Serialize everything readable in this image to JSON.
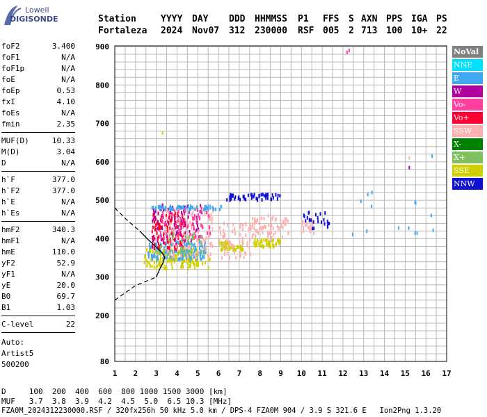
{
  "logo": {
    "line1": "Lowell",
    "line2": "DIGISONDE"
  },
  "header": {
    "row1": [
      "Station",
      "YYYY",
      "DAY",
      "DDD",
      "HHMMSS",
      "P1",
      "FFS",
      "S",
      "AXN",
      "PPS",
      "IGA",
      "PS"
    ],
    "row2": [
      "Fortaleza",
      "2024",
      "Nov07",
      "312",
      "230000",
      "RSF",
      "005",
      "2",
      "713",
      "100",
      "10+",
      "22"
    ]
  },
  "params_group1": [
    {
      "name": "foF2",
      "value": "3.400"
    },
    {
      "name": "foF1",
      "value": "N/A"
    },
    {
      "name": "foF1p",
      "value": "N/A"
    },
    {
      "name": "foE",
      "value": "N/A"
    },
    {
      "name": "foEp",
      "value": "0.53"
    },
    {
      "name": "fxI",
      "value": "4.10"
    },
    {
      "name": "foEs",
      "value": "N/A"
    },
    {
      "name": "fmin",
      "value": "2.35"
    }
  ],
  "params_group2": [
    {
      "name": "MUF(D)",
      "value": "10.33"
    },
    {
      "name": "M(D)",
      "value": "3.04"
    },
    {
      "name": "D",
      "value": "N/A"
    }
  ],
  "params_group3": [
    {
      "name": "h`F",
      "value": "377.0"
    },
    {
      "name": "h`F2",
      "value": "377.0"
    },
    {
      "name": "h`E",
      "value": "N/A"
    },
    {
      "name": "h`Es",
      "value": "N/A"
    }
  ],
  "params_group4": [
    {
      "name": "hmF2",
      "value": "340.3"
    },
    {
      "name": "hmF1",
      "value": "N/A"
    },
    {
      "name": "hmE",
      "value": "110.0"
    },
    {
      "name": "yF2",
      "value": "52.9"
    },
    {
      "name": "yF1",
      "value": "N/A"
    },
    {
      "name": "yE",
      "value": "20.0"
    },
    {
      "name": "B0",
      "value": "69.7"
    },
    {
      "name": "B1",
      "value": "1.03"
    }
  ],
  "params_group5": [
    {
      "name": "C-level",
      "value": "22"
    }
  ],
  "autoscaling": {
    "line1": "Auto:",
    "line2": "Artist5",
    "line3": "500200"
  },
  "footer": {
    "d_row": "D     100  200  400  600  800 1000 1500 3000 [km]",
    "muf_row": "MUF   3.7  3.8  3.9  4.2  4.5  5.0  6.5 10.3 [MHz]",
    "file_row": "FZA0M_2024312230000.RSF / 320fx256h 50 kHz 5.0 km / DPS-4 FZA0M 904 / 3.9 S 321.6 E   Ion2Png 1.3.20"
  },
  "legend": [
    {
      "label": "NoVal",
      "color": "#808080"
    },
    {
      "label": "NNE",
      "color": "#00e0ff"
    },
    {
      "label": "E",
      "color": "#40a8f0"
    },
    {
      "label": "W",
      "color": "#b000a0"
    },
    {
      "label": "Vo-",
      "color": "#ff40a0"
    },
    {
      "label": "Vo+",
      "color": "#ff0030"
    },
    {
      "label": "SSW",
      "color": "#ffb0b0"
    },
    {
      "label": "X-",
      "color": "#008000"
    },
    {
      "label": "X+",
      "color": "#80c060"
    },
    {
      "label": "SSE",
      "color": "#d0d000"
    },
    {
      "label": "NNW",
      "color": "#1010d0"
    }
  ],
  "chart_data": {
    "type": "scatter",
    "title": "",
    "xlabel": "",
    "ylabel": "",
    "xlim": [
      1,
      17
    ],
    "ylim": [
      80,
      900
    ],
    "x_ticks": [
      1,
      2,
      3,
      4,
      5,
      6,
      7,
      8,
      9,
      10,
      11,
      12,
      13,
      14,
      15,
      16,
      17
    ],
    "y_ticks": [
      80,
      200,
      300,
      400,
      500,
      600,
      700,
      800,
      900
    ],
    "grid": true,
    "ionogram_clusters": [
      {
        "series": "SSE",
        "x_range": [
          2.4,
          5.6
        ],
        "y_range": [
          322,
          372
        ],
        "count": 160
      },
      {
        "series": "E",
        "x_range": [
          2.6,
          5.4
        ],
        "y_range": [
          346,
          392
        ],
        "count": 140
      },
      {
        "series": "Vo+",
        "x_range": [
          2.8,
          4.4
        ],
        "y_range": [
          372,
          470
        ],
        "count": 130
      },
      {
        "series": "W",
        "x_range": [
          2.8,
          5.2
        ],
        "y_range": [
          390,
          490
        ],
        "count": 90
      },
      {
        "series": "SSW",
        "x_range": [
          3.4,
          5.8
        ],
        "y_range": [
          350,
          480
        ],
        "count": 120
      },
      {
        "series": "Vo-",
        "x_range": [
          3.0,
          5.6
        ],
        "y_range": [
          400,
          480
        ],
        "count": 60
      },
      {
        "series": "X+",
        "x_range": [
          3.0,
          5.2
        ],
        "y_range": [
          340,
          420
        ],
        "count": 40
      },
      {
        "series": "SSE",
        "x_range": [
          6.0,
          7.2
        ],
        "y_range": [
          370,
          392
        ],
        "count": 50
      },
      {
        "series": "SSW",
        "x_range": [
          6.0,
          7.6
        ],
        "y_range": [
          350,
          440
        ],
        "count": 60
      },
      {
        "series": "SSE",
        "x_range": [
          7.7,
          9.0
        ],
        "y_range": [
          378,
          398
        ],
        "count": 50
      },
      {
        "series": "SSW",
        "x_range": [
          7.6,
          9.4
        ],
        "y_range": [
          400,
          460
        ],
        "count": 70
      },
      {
        "series": "SSW",
        "x_range": [
          10.0,
          10.6
        ],
        "y_range": [
          410,
          450
        ],
        "count": 20
      },
      {
        "series": "E",
        "x_range": [
          2.8,
          6.2
        ],
        "y_range": [
          475,
          485
        ],
        "count": 60
      },
      {
        "series": "NNW",
        "x_range": [
          6.4,
          9.0
        ],
        "y_range": [
          500,
          515
        ],
        "count": 50
      },
      {
        "series": "NNW",
        "x_range": [
          10.1,
          11.4
        ],
        "y_range": [
          425,
          470
        ],
        "count": 25
      },
      {
        "series": "E",
        "x_range": [
          12.2,
          16.4
        ],
        "y_range": [
          410,
          520
        ],
        "count": 12
      }
    ],
    "isolated_points": [
      {
        "series": "Vo-",
        "x": 12.2,
        "y": 885
      },
      {
        "series": "Vo-",
        "x": 12.3,
        "y": 890
      },
      {
        "series": "SSE",
        "x": 3.3,
        "y": 675
      },
      {
        "series": "E",
        "x": 16.3,
        "y": 615
      },
      {
        "series": "W",
        "x": 15.2,
        "y": 585
      },
      {
        "series": "SSW",
        "x": 15.2,
        "y": 610
      },
      {
        "series": "E",
        "x": 13.4,
        "y": 520
      },
      {
        "series": "E",
        "x": 13.2,
        "y": 515
      }
    ],
    "profile": {
      "curve": [
        [
          3.0,
          300
        ],
        [
          3.2,
          325
        ],
        [
          3.35,
          340
        ],
        [
          3.4,
          352
        ],
        [
          3.3,
          362
        ],
        [
          3.0,
          378
        ],
        [
          2.6,
          398
        ],
        [
          2.2,
          420
        ]
      ],
      "lower_dashed": [
        [
          1.0,
          240
        ],
        [
          2.0,
          278
        ],
        [
          3.0,
          300
        ]
      ],
      "upper_dashed": [
        [
          1.0,
          480
        ],
        [
          1.6,
          448
        ],
        [
          2.2,
          420
        ]
      ]
    }
  }
}
